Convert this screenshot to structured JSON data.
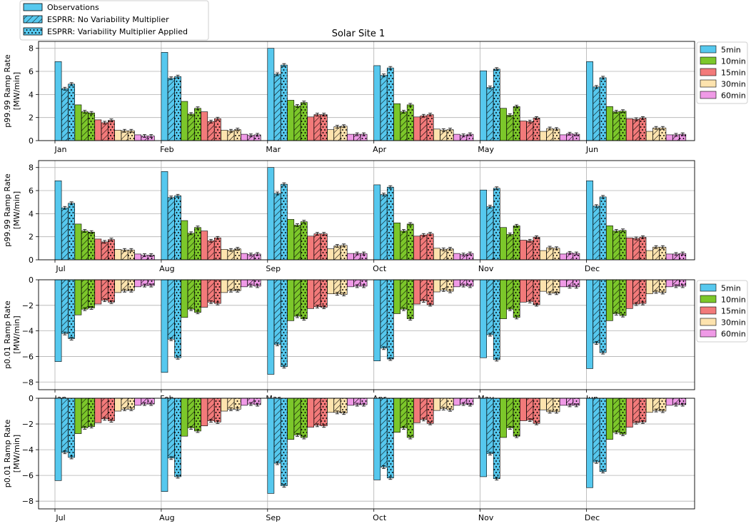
{
  "chart_data": {
    "type": "bar",
    "title": "Solar Site 1",
    "resolutions": [
      "5min",
      "10min",
      "15min",
      "30min",
      "60min"
    ],
    "colors": {
      "5min": "#56c8ee",
      "10min": "#7cc72a",
      "15min": "#f27a7a",
      "30min": "#fde3ae",
      "60min": "#ef9ae6"
    },
    "method_legend": [
      "Observations",
      "ESPRR: No Variability Multiplier",
      "ESPRR: Variability Multiplier Applied"
    ],
    "panels": [
      {
        "id": "p99-jan-jun",
        "ylabel": "p99.99 Ramp Rate",
        "yunits": "[MW/min]",
        "ylim": [
          0,
          8.6
        ],
        "yticks": [
          "0",
          "2",
          "4",
          "6",
          "8"
        ],
        "show_legend": true,
        "months": [
          "Jan",
          "Feb",
          "Mar",
          "Apr",
          "May",
          "Jun"
        ],
        "values": [
          [
            [
              6.85,
              4.5,
              4.9
            ],
            [
              3.1,
              2.5,
              2.4
            ],
            [
              1.8,
              1.55,
              1.75
            ],
            [
              0.9,
              0.85,
              0.85
            ],
            [
              0.5,
              0.4,
              0.4
            ]
          ],
          [
            [
              7.65,
              5.4,
              5.55
            ],
            [
              3.4,
              2.3,
              2.8
            ],
            [
              2.5,
              1.65,
              1.9
            ],
            [
              0.9,
              0.85,
              0.95
            ],
            [
              0.55,
              0.45,
              0.5
            ]
          ],
          [
            [
              8.0,
              5.75,
              6.55
            ],
            [
              3.5,
              3.0,
              3.3
            ],
            [
              2.05,
              2.25,
              2.25
            ],
            [
              0.95,
              1.2,
              1.25
            ],
            [
              0.55,
              0.55,
              0.55
            ]
          ],
          [
            [
              6.5,
              5.65,
              6.3
            ],
            [
              3.2,
              2.5,
              3.1
            ],
            [
              2.05,
              2.15,
              2.25
            ],
            [
              1.0,
              0.9,
              0.95
            ],
            [
              0.55,
              0.45,
              0.55
            ]
          ],
          [
            [
              6.05,
              4.6,
              6.2
            ],
            [
              2.8,
              2.2,
              2.95
            ],
            [
              1.7,
              1.65,
              1.95
            ],
            [
              0.8,
              1.05,
              1.0
            ],
            [
              0.5,
              0.6,
              0.55
            ]
          ],
          [
            [
              6.85,
              4.65,
              5.45
            ],
            [
              2.95,
              2.5,
              2.55
            ],
            [
              1.9,
              1.85,
              1.95
            ],
            [
              0.8,
              1.1,
              1.1
            ],
            [
              0.5,
              0.5,
              0.55
            ]
          ]
        ]
      },
      {
        "id": "p99-jul-dec",
        "ylabel": "p99.99 Ramp Rate",
        "yunits": "[MW/min]",
        "ylim": [
          0,
          8.6
        ],
        "yticks": [
          "0",
          "2",
          "4",
          "6",
          "8"
        ],
        "show_legend": false,
        "months": [
          "Jul",
          "Aug",
          "Sep",
          "Oct",
          "Nov",
          "Dec"
        ],
        "values": [
          [
            [
              6.85,
              4.5,
              4.9
            ],
            [
              3.1,
              2.5,
              2.4
            ],
            [
              1.8,
              1.55,
              1.75
            ],
            [
              0.9,
              0.85,
              0.85
            ],
            [
              0.5,
              0.4,
              0.4
            ]
          ],
          [
            [
              7.65,
              5.4,
              5.55
            ],
            [
              3.4,
              2.3,
              2.8
            ],
            [
              2.5,
              1.65,
              1.9
            ],
            [
              0.9,
              0.85,
              0.95
            ],
            [
              0.55,
              0.45,
              0.5
            ]
          ],
          [
            [
              8.0,
              5.75,
              6.55
            ],
            [
              3.5,
              3.0,
              3.3
            ],
            [
              2.05,
              2.25,
              2.25
            ],
            [
              0.95,
              1.2,
              1.25
            ],
            [
              0.55,
              0.55,
              0.55
            ]
          ],
          [
            [
              6.5,
              5.65,
              6.3
            ],
            [
              3.2,
              2.5,
              3.1
            ],
            [
              2.05,
              2.15,
              2.25
            ],
            [
              1.0,
              0.9,
              0.95
            ],
            [
              0.55,
              0.45,
              0.55
            ]
          ],
          [
            [
              6.05,
              4.6,
              6.2
            ],
            [
              2.8,
              2.2,
              2.95
            ],
            [
              1.7,
              1.65,
              1.95
            ],
            [
              0.8,
              1.05,
              1.0
            ],
            [
              0.5,
              0.6,
              0.55
            ]
          ],
          [
            [
              6.85,
              4.65,
              5.45
            ],
            [
              2.95,
              2.5,
              2.55
            ],
            [
              1.9,
              1.85,
              1.95
            ],
            [
              0.8,
              1.1,
              1.1
            ],
            [
              0.5,
              0.5,
              0.55
            ]
          ]
        ]
      },
      {
        "id": "p001-jan-jun",
        "ylabel": "p0.01 Ramp Rate",
        "yunits": "[MW/min]",
        "ylim": [
          -8.6,
          0
        ],
        "yticks": [
          "−8",
          "−6",
          "−4",
          "−2",
          "0"
        ],
        "show_legend": true,
        "months": [
          "Jan",
          "Feb",
          "Mar",
          "Apr",
          "May",
          "Jun"
        ],
        "values": [
          [
            [
              -6.4,
              -4.2,
              -4.6
            ],
            [
              -2.75,
              -2.3,
              -2.2
            ],
            [
              -1.9,
              -1.6,
              -1.75
            ],
            [
              -1.0,
              -0.85,
              -0.85
            ],
            [
              -0.55,
              -0.45,
              -0.45
            ]
          ],
          [
            [
              -7.25,
              -4.65,
              -6.1
            ],
            [
              -2.95,
              -2.3,
              -2.55
            ],
            [
              -2.15,
              -1.75,
              -1.85
            ],
            [
              -1.0,
              -0.85,
              -0.85
            ],
            [
              -0.55,
              -0.45,
              -0.5
            ]
          ],
          [
            [
              -7.4,
              -5.05,
              -6.8
            ],
            [
              -3.2,
              -2.85,
              -3.05
            ],
            [
              -2.25,
              -2.1,
              -2.15
            ],
            [
              -1.1,
              -1.1,
              -1.15
            ],
            [
              -0.55,
              -0.5,
              -0.5
            ]
          ],
          [
            [
              -6.35,
              -5.35,
              -6.2
            ],
            [
              -2.65,
              -2.3,
              -3.05
            ],
            [
              -1.9,
              -1.65,
              -1.95
            ],
            [
              -0.95,
              -0.8,
              -0.9
            ],
            [
              -0.55,
              -0.45,
              -0.5
            ]
          ],
          [
            [
              -6.1,
              -4.3,
              -6.25
            ],
            [
              -3.05,
              -2.3,
              -2.95
            ],
            [
              -1.75,
              -1.7,
              -1.95
            ],
            [
              -0.9,
              -1.05,
              -1.05
            ],
            [
              -0.55,
              -0.55,
              -0.55
            ]
          ],
          [
            [
              -6.95,
              -4.95,
              -5.7
            ],
            [
              -3.2,
              -2.65,
              -2.8
            ],
            [
              -2.25,
              -1.9,
              -1.85
            ],
            [
              -1.1,
              -0.95,
              -1.0
            ],
            [
              -0.55,
              -0.5,
              -0.5
            ]
          ]
        ]
      },
      {
        "id": "p001-jul-dec",
        "ylabel": "p0.01 Ramp Rate",
        "yunits": "[MW/min]",
        "ylim": [
          -8.6,
          0
        ],
        "yticks": [
          "−8",
          "−6",
          "−4",
          "−2",
          "0"
        ],
        "show_legend": false,
        "months": [
          "Jul",
          "Aug",
          "Sep",
          "Oct",
          "Nov",
          "Dec"
        ],
        "values": [
          [
            [
              -6.4,
              -4.2,
              -4.6
            ],
            [
              -2.75,
              -2.3,
              -2.2
            ],
            [
              -1.9,
              -1.6,
              -1.75
            ],
            [
              -1.0,
              -0.85,
              -0.85
            ],
            [
              -0.55,
              -0.45,
              -0.45
            ]
          ],
          [
            [
              -7.25,
              -4.65,
              -6.1
            ],
            [
              -2.95,
              -2.3,
              -2.55
            ],
            [
              -2.15,
              -1.75,
              -1.85
            ],
            [
              -1.0,
              -0.85,
              -0.85
            ],
            [
              -0.55,
              -0.45,
              -0.5
            ]
          ],
          [
            [
              -7.4,
              -5.05,
              -6.8
            ],
            [
              -3.2,
              -2.85,
              -3.05
            ],
            [
              -2.25,
              -2.1,
              -2.15
            ],
            [
              -1.1,
              -1.1,
              -1.15
            ],
            [
              -0.55,
              -0.5,
              -0.5
            ]
          ],
          [
            [
              -6.35,
              -5.35,
              -6.2
            ],
            [
              -2.65,
              -2.3,
              -3.05
            ],
            [
              -1.9,
              -1.65,
              -1.95
            ],
            [
              -0.95,
              -0.8,
              -0.9
            ],
            [
              -0.55,
              -0.45,
              -0.5
            ]
          ],
          [
            [
              -6.1,
              -4.3,
              -6.25
            ],
            [
              -3.05,
              -2.3,
              -2.95
            ],
            [
              -1.75,
              -1.7,
              -1.95
            ],
            [
              -0.9,
              -1.05,
              -1.05
            ],
            [
              -0.55,
              -0.55,
              -0.55
            ]
          ],
          [
            [
              -6.95,
              -4.95,
              -5.7
            ],
            [
              -3.2,
              -2.65,
              -2.8
            ],
            [
              -2.25,
              -1.9,
              -1.85
            ],
            [
              -1.1,
              -0.95,
              -1.0
            ],
            [
              -0.55,
              -0.5,
              -0.5
            ]
          ]
        ]
      }
    ]
  }
}
